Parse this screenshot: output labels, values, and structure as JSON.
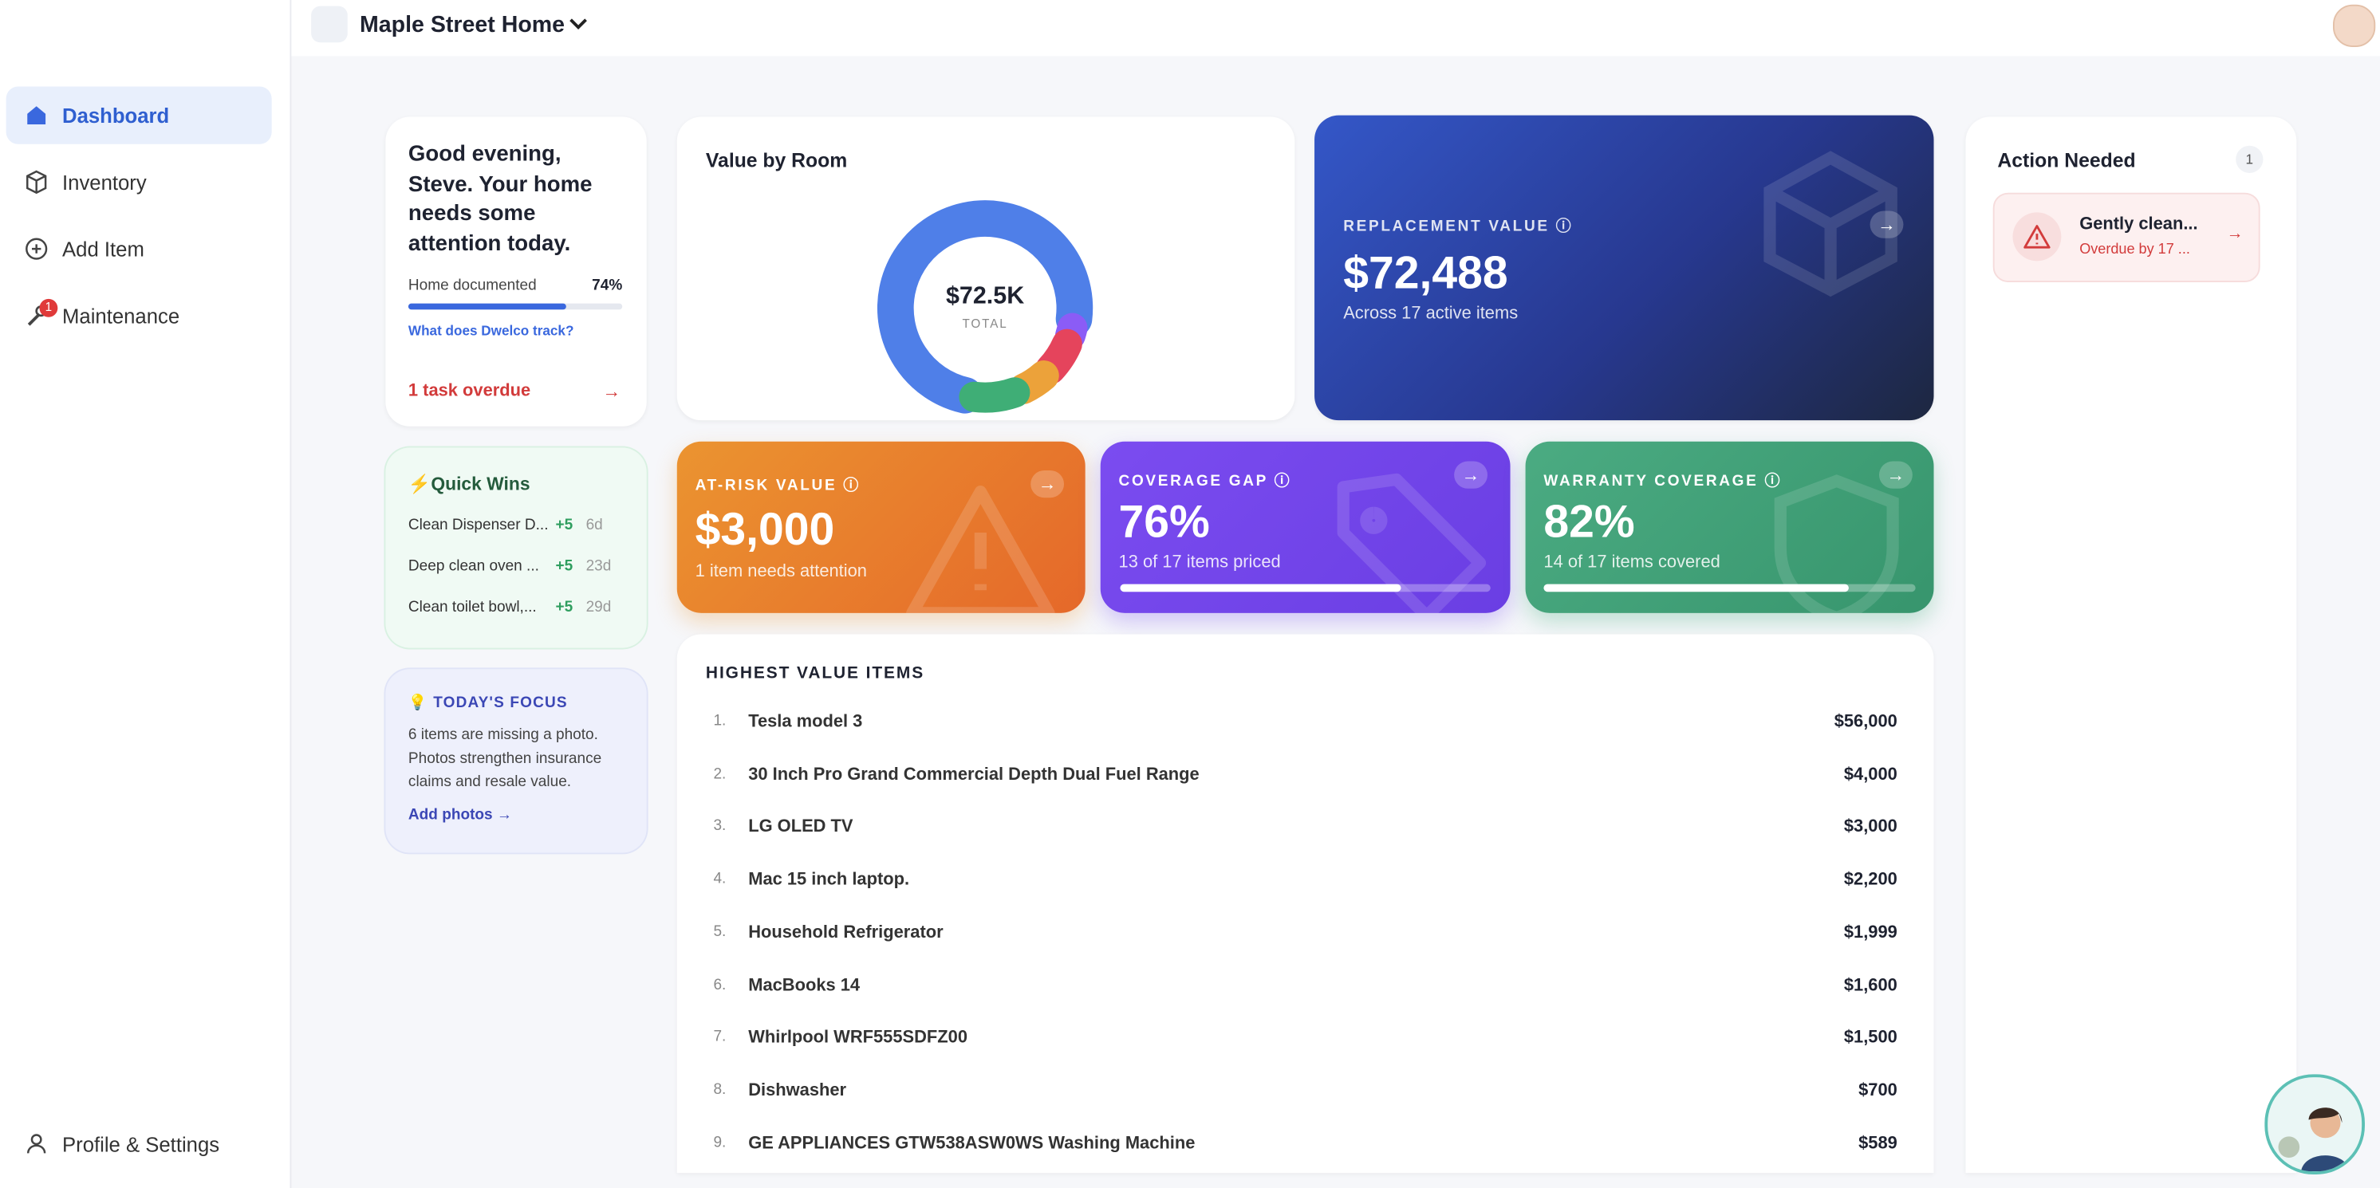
{
  "header": {
    "home_name": "Maple Street Home"
  },
  "sidebar": {
    "nav": [
      "Dashboard",
      "Inventory",
      "Add Item",
      "Maintenance"
    ],
    "maintenance_badge": 1,
    "profile": "Profile & Settings"
  },
  "greeting": {
    "message": "Good evening, Steve. Your home needs some attention today.",
    "progress_label": "Home documented",
    "progress": {
      "value": 74,
      "label": "74%"
    },
    "link": "What does Dwelco track?",
    "overdue": "1 task overdue"
  },
  "quick_wins": {
    "title": "Quick Wins",
    "items": [
      {
        "name": "Clean Dispenser D...",
        "points": "+5",
        "age": "6d"
      },
      {
        "name": "Deep clean oven ...",
        "points": "+5",
        "age": "23d"
      },
      {
        "name": "Clean toilet bowl,...",
        "points": "+5",
        "age": "29d"
      }
    ]
  },
  "focus": {
    "title": "TODAY'S FOCUS",
    "text": "6 items are missing a photo. Photos strengthen insurance claims and resale value.",
    "link": "Add photos →"
  },
  "value_by_room": {
    "title": "Value by Room",
    "total": "$72.5K",
    "total_label": "TOTAL",
    "segments": [
      {
        "color": "#4f7fe8",
        "value": 75
      },
      {
        "color": "#8b5cf6",
        "value": 3
      },
      {
        "color": "#e5445c",
        "value": 7
      },
      {
        "color": "#eca23a",
        "value": 6
      },
      {
        "color": "#3fae76",
        "value": 9
      }
    ]
  },
  "replacement": {
    "label": "REPLACEMENT VALUE",
    "value": "$72,488",
    "sub": "Across 17 active items"
  },
  "at_risk": {
    "label": "AT-RISK VALUE",
    "value": "$3,000",
    "sub": "1 item needs attention"
  },
  "coverage_gap": {
    "label": "COVERAGE GAP",
    "percent": {
      "value": 76,
      "label": "76%"
    },
    "sub": "13 of 17 items priced"
  },
  "warranty": {
    "label": "WARRANTY COVERAGE",
    "percent": {
      "value": 82,
      "label": "82%"
    },
    "sub": "14 of 17 items covered"
  },
  "items_table": {
    "title": "HIGHEST VALUE ITEMS",
    "rows": [
      [
        "1.",
        "Tesla model 3",
        "$56,000"
      ],
      [
        "2.",
        "30 Inch Pro Grand Commercial Depth Dual Fuel Range",
        "$4,000"
      ],
      [
        "3.",
        "LG OLED TV",
        "$3,000"
      ],
      [
        "4.",
        "Mac 15 inch laptop.",
        "$2,200"
      ],
      [
        "5.",
        "Household Refrigerator",
        "$1,999"
      ],
      [
        "6.",
        "MacBooks 14",
        "$1,600"
      ],
      [
        "7.",
        "Whirlpool WRF555SDFZ00",
        "$1,500"
      ],
      [
        "8.",
        "Dishwasher",
        "$700"
      ],
      [
        "9.",
        "GE APPLIANCES GTW538ASW0WS Washing Machine",
        "$589"
      ]
    ]
  },
  "action_needed": {
    "title": "Action Needed",
    "count": 1,
    "item": {
      "title": "Gently clean...",
      "sub": "Overdue by 17 ..."
    }
  }
}
